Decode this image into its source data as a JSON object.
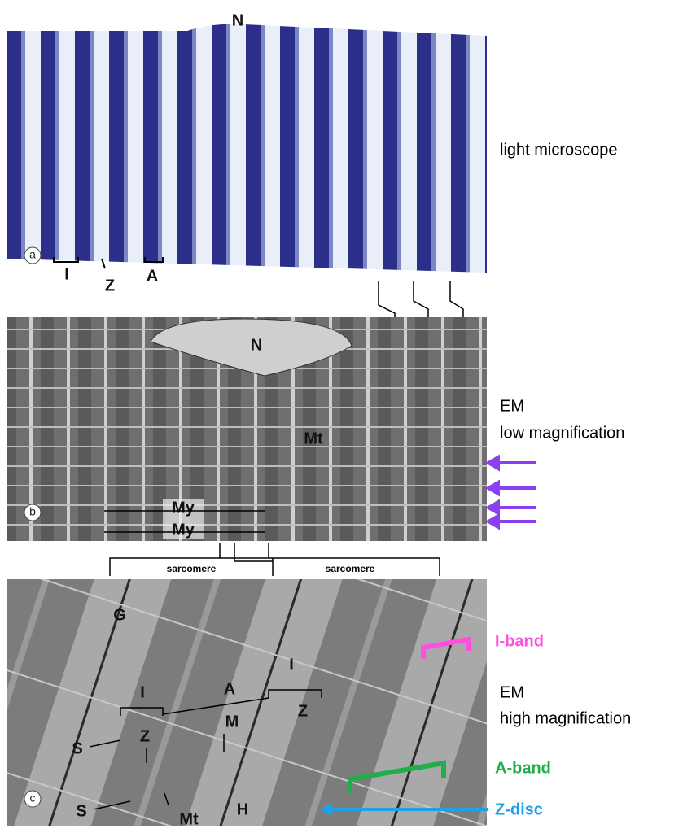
{
  "panel_a": {
    "label": "a",
    "nucleus": "N",
    "marks": [
      "I",
      "Z",
      "A"
    ],
    "caption": "light microscope"
  },
  "panel_b": {
    "label": "b",
    "nucleus": "N",
    "marks": [
      "Mt",
      "My",
      "My"
    ],
    "caption": [
      "EM",
      "low magnification"
    ]
  },
  "sarcomere_labels": [
    "sarcomere",
    "sarcomere"
  ],
  "panel_c": {
    "label": "c",
    "marks": [
      "G",
      "I",
      "A",
      "I",
      "Z",
      "M",
      "S",
      "Z",
      "S",
      "Mt",
      "H"
    ],
    "caption": [
      "EM",
      "high magnification"
    ]
  },
  "legend": [
    "I-band",
    "A-band",
    "Z-disc"
  ]
}
